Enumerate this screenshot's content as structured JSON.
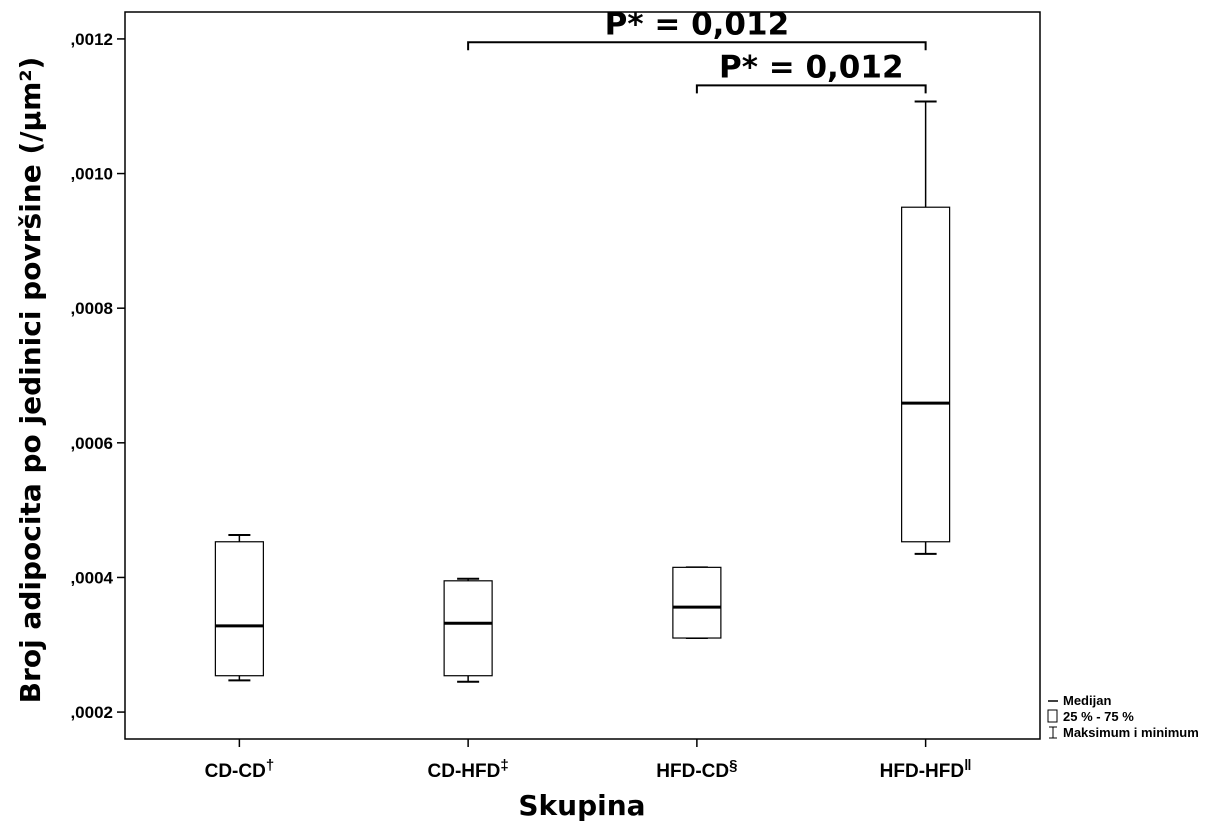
{
  "chart_data": {
    "type": "boxplot",
    "xlabel": "Skupina",
    "ylabel": "Broj adipocita po jedinici površine (/µm²)",
    "ylim": [
      0.00016,
      0.00124
    ],
    "yticks": [
      0.0002,
      0.0004,
      0.0006,
      0.0008,
      0.001,
      0.0012
    ],
    "ytick_labels": [
      ",0002",
      ",0004",
      ",0006",
      ",0008",
      ",0010",
      ",0012"
    ],
    "grid": false,
    "categories": [
      {
        "label": "CD-CD",
        "mark": "†"
      },
      {
        "label": "CD-HFD",
        "mark": "‡"
      },
      {
        "label": "HFD-CD",
        "mark": "§"
      },
      {
        "label": "HFD-HFD",
        "mark": "ǁ"
      }
    ],
    "boxes": [
      {
        "min": 0.000247,
        "q1": 0.000254,
        "median": 0.000328,
        "q3": 0.000453,
        "max": 0.000463
      },
      {
        "min": 0.000245,
        "q1": 0.000254,
        "median": 0.000332,
        "q3": 0.000395,
        "max": 0.000398
      },
      {
        "min": 0.00031,
        "q1": 0.00031,
        "median": 0.000356,
        "q3": 0.000415,
        "max": 0.000415
      },
      {
        "min": 0.000435,
        "q1": 0.000453,
        "median": 0.000659,
        "q3": 0.00095,
        "max": 0.001107
      }
    ],
    "annotations": [
      {
        "text": "P* = 0,012",
        "from": 1,
        "to": 3,
        "y": 0.001195
      },
      {
        "text": "P* = 0,012",
        "from": 2,
        "to": 3,
        "y": 0.001131
      }
    ],
    "legend": {
      "position": "bottom-right",
      "items": [
        {
          "symbol": "median-line",
          "label": "Medijan"
        },
        {
          "symbol": "box",
          "label": "25 % - 75 %"
        },
        {
          "symbol": "whisker",
          "label": "Maksimum i minimum"
        }
      ]
    }
  }
}
